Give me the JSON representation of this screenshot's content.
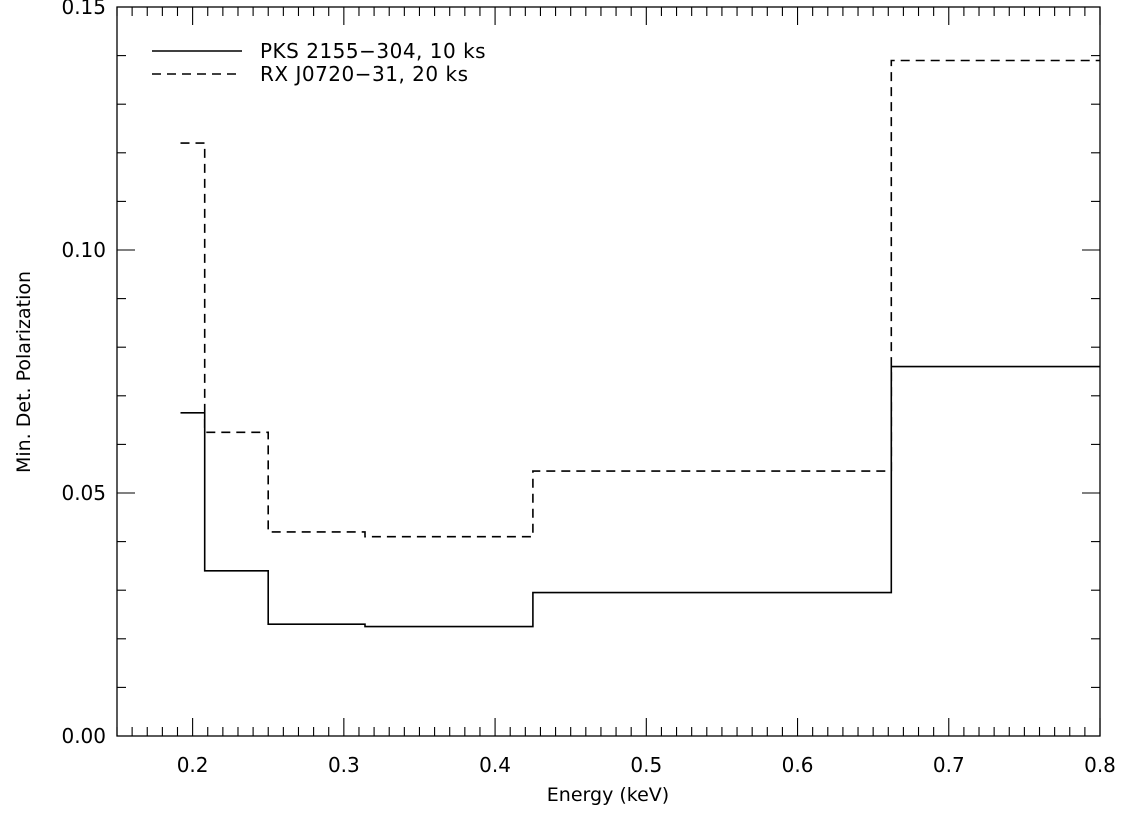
{
  "chart_data": {
    "type": "line",
    "step": true,
    "xlabel": "Energy (keV)",
    "ylabel": "Min. Det. Polarization",
    "xlim": [
      0.15,
      0.8
    ],
    "ylim": [
      0.0,
      0.15
    ],
    "x_ticks": [
      "0.2",
      "0.3",
      "0.4",
      "0.5",
      "0.6",
      "0.7",
      "0.8"
    ],
    "y_ticks": [
      "0.00",
      "0.05",
      "0.10",
      "0.15"
    ],
    "grid": false,
    "legend_position": "top-left",
    "series": [
      {
        "name": "PKS 2155−304, 10 ks",
        "line_style": "solid",
        "color": "#000000",
        "bin_edges": [
          0.192,
          0.208,
          0.25,
          0.314,
          0.425,
          0.662,
          0.8
        ],
        "values": [
          0.0665,
          0.034,
          0.023,
          0.0225,
          0.0295,
          0.076
        ]
      },
      {
        "name": "RX J0720−31, 20 ks",
        "line_style": "dashed",
        "color": "#000000",
        "bin_edges": [
          0.192,
          0.208,
          0.25,
          0.314,
          0.425,
          0.662,
          0.8
        ],
        "values": [
          0.122,
          0.0625,
          0.042,
          0.041,
          0.0545,
          0.139
        ]
      }
    ]
  }
}
